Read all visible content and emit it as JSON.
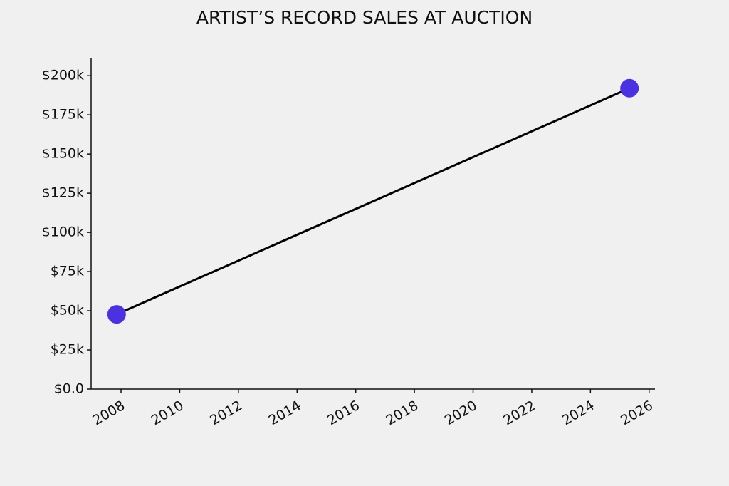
{
  "chart_data": {
    "type": "line",
    "title": "ARTIST’S RECORD SALES AT AUCTION",
    "x": [
      2007.85,
      2025.33
    ],
    "values": [
      47700,
      192000
    ],
    "color": "#4b32e0",
    "line_color": "#000000",
    "xlim": [
      2006.98,
      2026.2
    ],
    "xticks": [
      2008,
      2010,
      2012,
      2014,
      2016,
      2018,
      2020,
      2022,
      2024,
      2026
    ],
    "ylim": [
      0,
      211000
    ],
    "yticks": [
      {
        "value": 0,
        "label": "$0.0"
      },
      {
        "value": 25000,
        "label": "$25k"
      },
      {
        "value": 50000,
        "label": "$50k"
      },
      {
        "value": 75000,
        "label": "$75k"
      },
      {
        "value": 100000,
        "label": "$100k"
      },
      {
        "value": 125000,
        "label": "$125k"
      },
      {
        "value": 150000,
        "label": "$150k"
      },
      {
        "value": 175000,
        "label": "$175k"
      },
      {
        "value": 200000,
        "label": "$200k"
      }
    ],
    "grid": false
  }
}
